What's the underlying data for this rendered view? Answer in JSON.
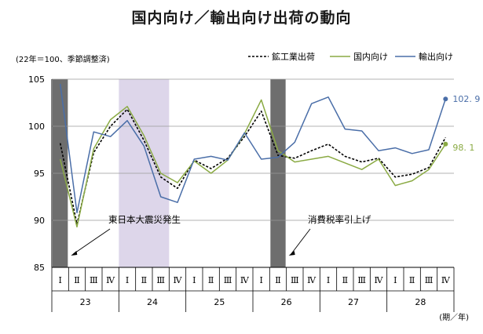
{
  "chart_data": {
    "type": "line",
    "title": "国内向け／輸出向け出荷の動向",
    "unit_note": "(22年＝100、季節調整済)",
    "x_unit_note": "(期／年)",
    "ylim": [
      85,
      105
    ],
    "yticks": [
      "85",
      "90",
      "95",
      "100",
      "105"
    ],
    "quarter_labels": [
      "Ⅰ",
      "Ⅱ",
      "Ⅲ",
      "Ⅳ",
      "Ⅰ",
      "Ⅱ",
      "Ⅲ",
      "Ⅳ",
      "Ⅰ",
      "Ⅱ",
      "Ⅲ",
      "Ⅳ",
      "Ⅰ",
      "Ⅱ",
      "Ⅲ",
      "Ⅳ",
      "Ⅰ",
      "Ⅱ",
      "Ⅲ",
      "Ⅳ",
      "Ⅰ",
      "Ⅱ",
      "Ⅲ",
      "Ⅳ"
    ],
    "year_labels": [
      "23",
      "24",
      "25",
      "26",
      "27",
      "28"
    ],
    "x": [
      "23-Ⅰ",
      "23-Ⅱ",
      "23-Ⅲ",
      "23-Ⅳ",
      "24-Ⅰ",
      "24-Ⅱ",
      "24-Ⅲ",
      "24-Ⅳ",
      "25-Ⅰ",
      "25-Ⅱ",
      "25-Ⅲ",
      "25-Ⅳ",
      "26-Ⅰ",
      "26-Ⅱ",
      "26-Ⅲ",
      "26-Ⅳ",
      "27-Ⅰ",
      "27-Ⅱ",
      "27-Ⅲ",
      "27-Ⅳ",
      "28-Ⅰ",
      "28-Ⅱ",
      "28-Ⅲ",
      "28-Ⅳ"
    ],
    "series": [
      {
        "name": "鉱工業出荷",
        "color": "#000000",
        "dash": true,
        "values": [
          98.2,
          89.6,
          97.2,
          100.0,
          101.8,
          98.5,
          94.6,
          93.4,
          96.4,
          95.5,
          96.6,
          98.9,
          101.6,
          96.9,
          96.6,
          97.4,
          98.1,
          96.8,
          96.2,
          96.6,
          94.6,
          94.9,
          95.6,
          98.8
        ]
      },
      {
        "name": "国内向け",
        "color": "#8aaa43",
        "dash": false,
        "values": [
          96.5,
          89.3,
          97.6,
          100.7,
          102.1,
          99.0,
          95.0,
          94.0,
          96.3,
          95.0,
          96.4,
          99.2,
          102.8,
          97.4,
          96.2,
          96.5,
          96.8,
          96.1,
          95.4,
          96.5,
          93.7,
          94.2,
          95.4,
          98.1
        ]
      },
      {
        "name": "輸出向け",
        "color": "#4a6ea8",
        "dash": false,
        "values": [
          104.5,
          90.8,
          99.4,
          98.9,
          100.6,
          97.9,
          92.5,
          91.9,
          96.5,
          96.8,
          96.4,
          99.3,
          96.5,
          96.7,
          98.3,
          102.4,
          103.1,
          99.7,
          99.5,
          97.4,
          97.7,
          97.1,
          97.5,
          102.9
        ]
      }
    ],
    "legend": [
      "鉱工業出荷",
      "国内向け",
      "輸出向け"
    ],
    "end_labels": [
      {
        "series": "輸出向け",
        "text": "102. 9"
      },
      {
        "series": "国内向け",
        "text": "98. 1"
      }
    ],
    "shaded_periods": [
      {
        "index": 0,
        "style": "dark",
        "color": "#6e6e6e"
      },
      {
        "index": 13,
        "style": "dark",
        "color": "#6e6e6e"
      },
      {
        "from": 4,
        "to": 6,
        "style": "light",
        "color": "#ddd6ea"
      }
    ],
    "annotations": [
      {
        "text": "東日本大震災発生",
        "period_index": 0
      },
      {
        "text": "消費税率引上げ",
        "period_index": 13
      }
    ],
    "grid": "horizontal"
  }
}
